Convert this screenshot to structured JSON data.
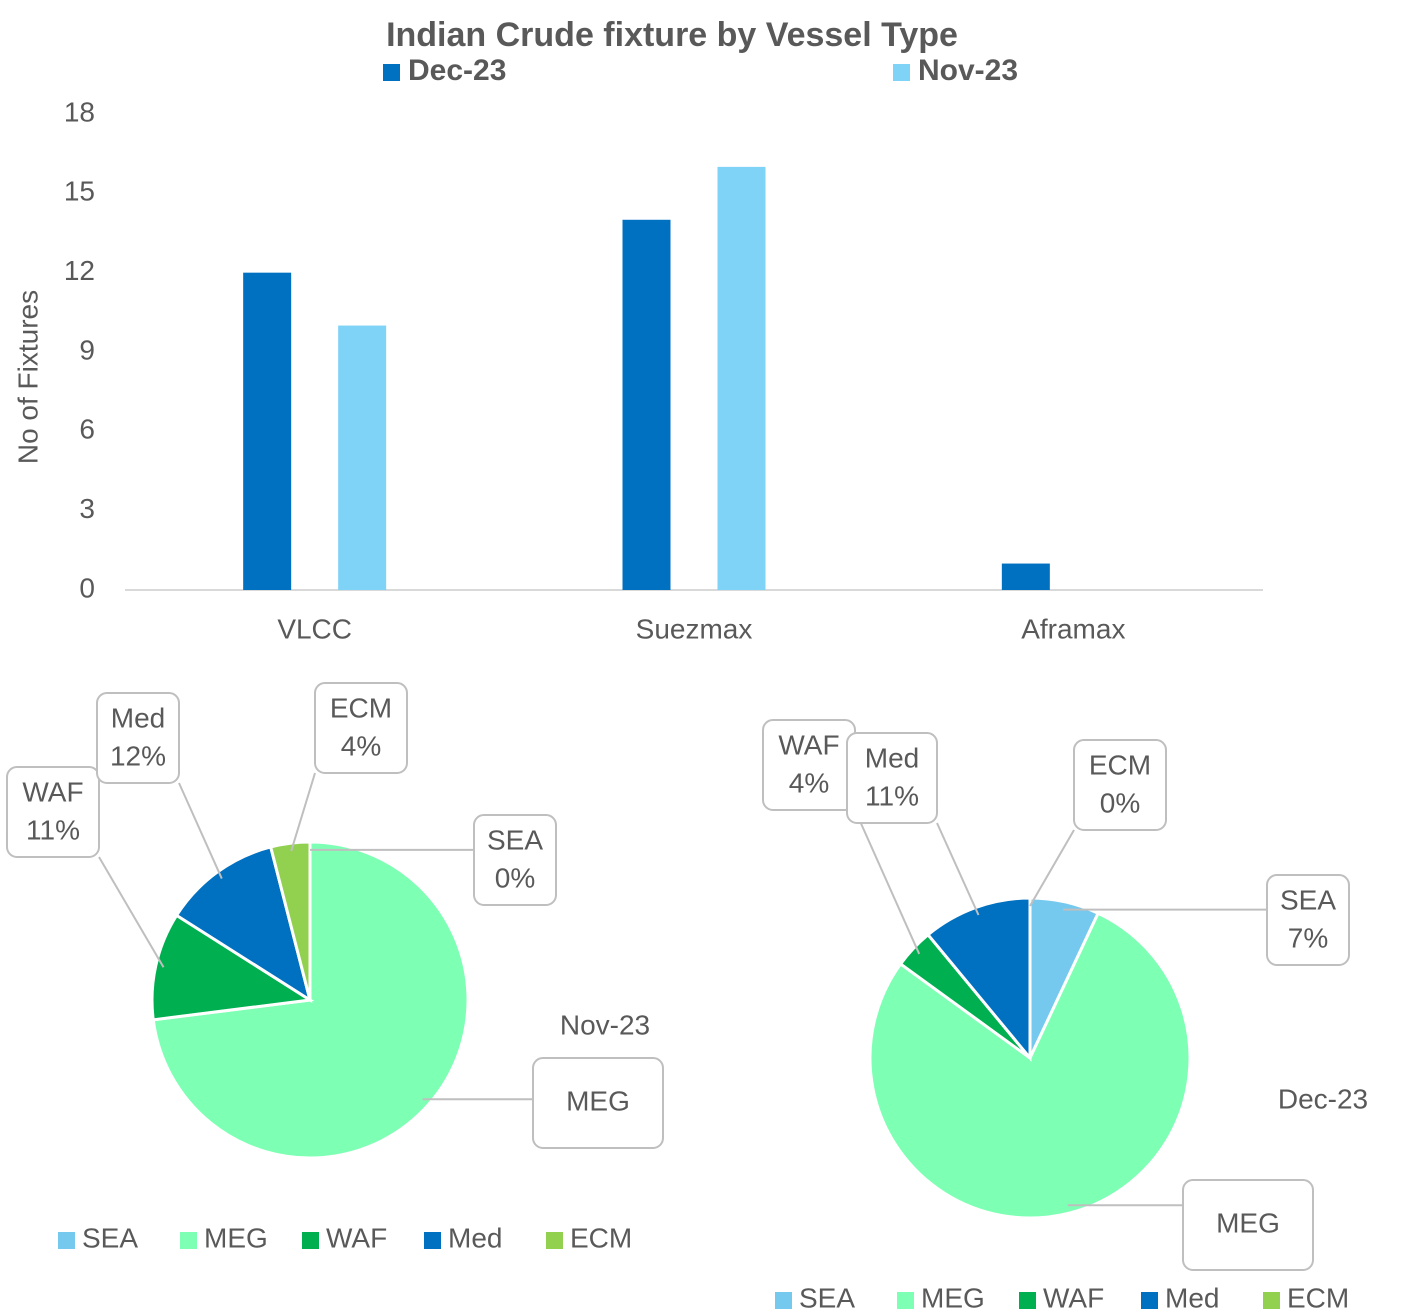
{
  "chart_data": [
    {
      "type": "bar",
      "title": "Indian Crude fixture by Vessel Type",
      "y_label": "No of Fixtures",
      "categories": [
        "VLCC",
        "Suezmax",
        "Aframax"
      ],
      "series": [
        {
          "name": "Dec-23",
          "color": "#0070c0",
          "values": [
            12,
            14,
            1
          ]
        },
        {
          "name": "Nov-23",
          "color": "#7fd3f7",
          "values": [
            10,
            16,
            0
          ]
        }
      ],
      "ylim": [
        0,
        18
      ],
      "yticks": [
        0,
        3,
        6,
        9,
        12,
        15,
        18
      ],
      "legend": "top"
    },
    {
      "type": "pie",
      "title": "Nov-23",
      "categories": [
        "SEA",
        "MEG",
        "WAF",
        "Med",
        "ECM"
      ],
      "values": [
        0,
        73,
        11,
        12,
        4
      ],
      "value_labels": [
        "0%",
        null,
        "11%",
        "12%",
        "4%"
      ],
      "colors": [
        "#75c9ef",
        "#7dffb4",
        "#00b050",
        "#0070c0",
        "#92d050"
      ],
      "legend": "bottom"
    },
    {
      "type": "pie",
      "title": "Dec-23",
      "categories": [
        "SEA",
        "MEG",
        "WAF",
        "Med",
        "ECM"
      ],
      "values": [
        7,
        78,
        4,
        11,
        0
      ],
      "value_labels": [
        "7%",
        null,
        "4%",
        "11%",
        "0%"
      ],
      "colors": [
        "#75c9ef",
        "#7dffb4",
        "#00b050",
        "#0070c0",
        "#92d050"
      ],
      "legend": "bottom"
    }
  ]
}
